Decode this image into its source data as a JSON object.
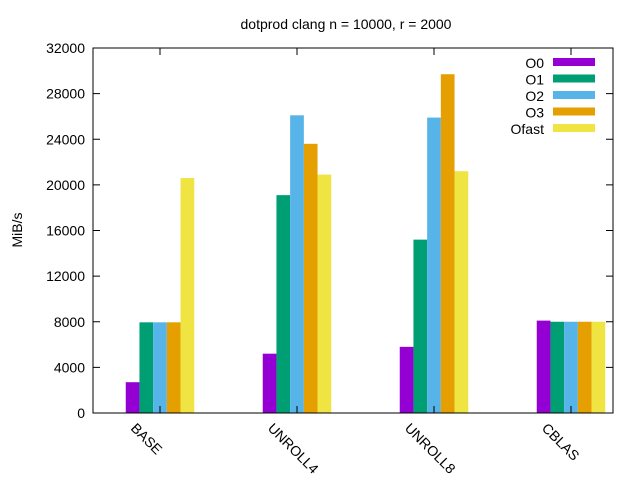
{
  "chart_data": {
    "type": "bar",
    "title": "dotprod clang n = 10000, r = 2000",
    "xlabel": "",
    "ylabel": "MiB/s",
    "ylim": [
      0,
      32000
    ],
    "yticks": [
      0,
      4000,
      8000,
      12000,
      16000,
      20000,
      24000,
      28000,
      32000
    ],
    "categories": [
      "BASE",
      "UNROLL4",
      "UNROLL8",
      "CBLAS"
    ],
    "grid": false,
    "legend_position": "top-right",
    "series": [
      {
        "name": "O0",
        "color": "#9400d3",
        "values": [
          2700,
          5200,
          5800,
          8100
        ]
      },
      {
        "name": "O1",
        "color": "#009e73",
        "values": [
          7950,
          19100,
          15200,
          8000
        ]
      },
      {
        "name": "O2",
        "color": "#56b4e9",
        "values": [
          7950,
          26100,
          25900,
          8000
        ]
      },
      {
        "name": "O3",
        "color": "#e69f00",
        "values": [
          7950,
          23600,
          29700,
          8000
        ]
      },
      {
        "name": "Ofast",
        "color": "#f0e442",
        "values": [
          20600,
          20900,
          21200,
          8000
        ]
      }
    ]
  }
}
